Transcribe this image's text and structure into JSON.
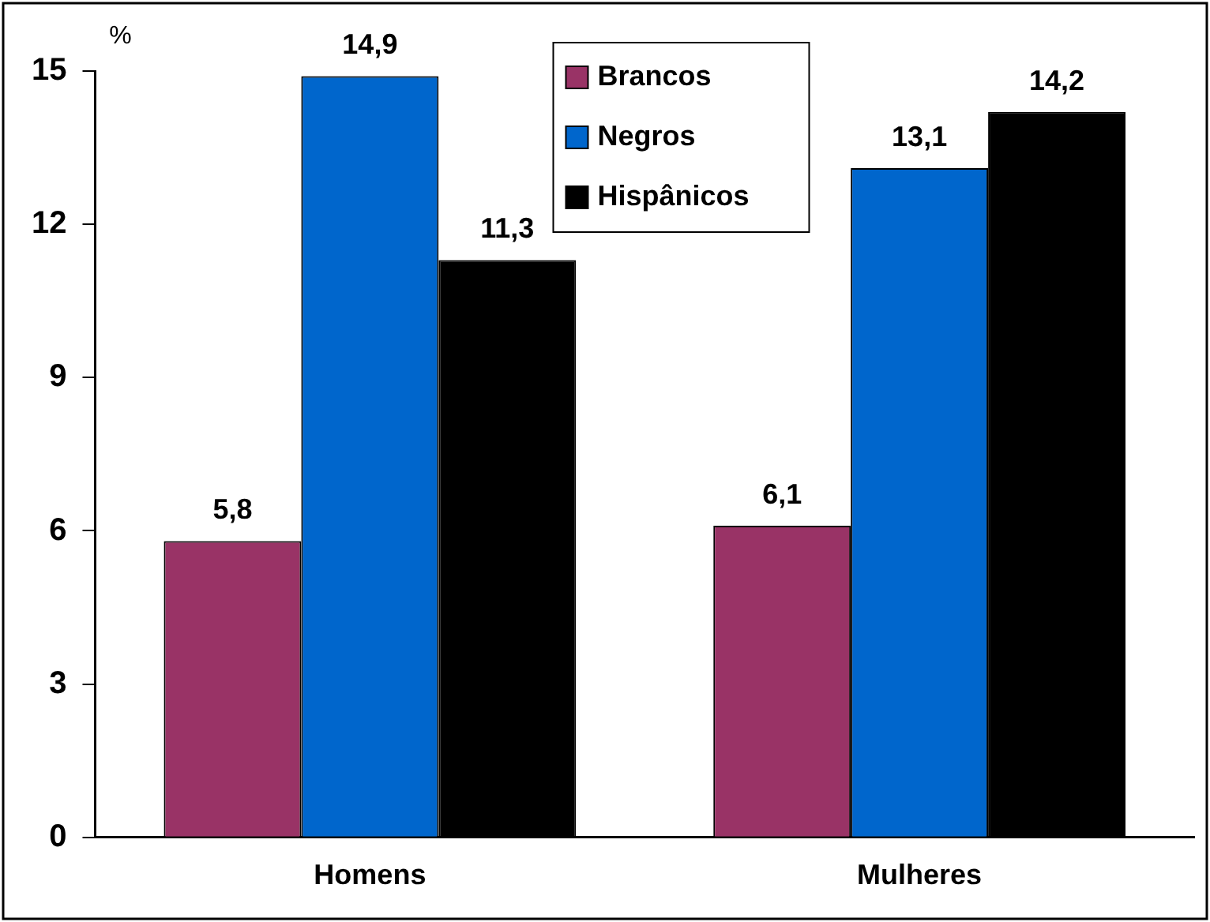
{
  "chart_data": {
    "type": "bar",
    "ylabel": "%",
    "categories": [
      "Homens",
      "Mulheres"
    ],
    "series": [
      {
        "name": "Brancos",
        "color": "#993366",
        "values": [
          5.8,
          6.1
        ],
        "value_labels": [
          "5,8",
          "6,1"
        ]
      },
      {
        "name": "Negros",
        "color": "#0066cc",
        "values": [
          14.9,
          13.1
        ],
        "value_labels": [
          "14,9",
          "13,1"
        ]
      },
      {
        "name": "Hispânicos",
        "color": "#000000",
        "values": [
          11.3,
          14.2
        ],
        "value_labels": [
          "11,3",
          "14,2"
        ]
      }
    ],
    "ylim": [
      0,
      15
    ],
    "yticks": [
      0,
      3,
      6,
      9,
      12,
      15
    ],
    "grid": false,
    "legend": "top right"
  }
}
